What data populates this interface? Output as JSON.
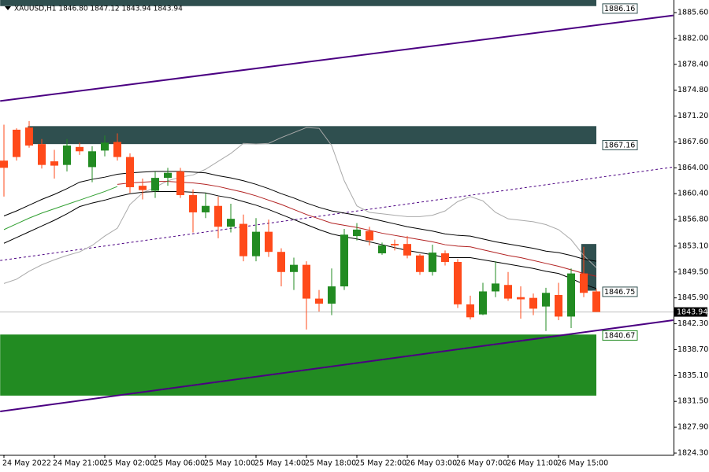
{
  "chart_data": {
    "type": "candlestick",
    "title": "XAUUSD,H1  1846.80 1847.12 1843.94 1843.94",
    "categories": [
      "24 May 2022",
      null,
      null,
      null,
      "24 May 21:00",
      null,
      null,
      null,
      "25 May 02:00",
      null,
      null,
      null,
      "25 May 06:00",
      null,
      null,
      null,
      "25 May 10:00",
      null,
      null,
      null,
      "25 May 14:00",
      null,
      null,
      null,
      "25 May 18:00",
      null,
      null,
      null,
      "25 May 22:00",
      null,
      null,
      null,
      "26 May 03:00",
      null,
      null,
      null,
      "26 May 07:00",
      null,
      null,
      null,
      "26 May 11:00",
      null,
      null,
      null,
      "26 May 15:00",
      null,
      null,
      null
    ],
    "open": [
      1865.0,
      1869.3,
      1869.6,
      1867.3,
      1864.9,
      1864.4,
      1866.9,
      1864.1,
      1866.4,
      1867.6,
      1865.5,
      1861.5,
      1860.8,
      1862.6,
      1863.5,
      1860.2,
      1857.8,
      1858.7,
      1855.8,
      1856.2,
      1851.7,
      1855.1,
      1852.3,
      1849.5,
      1850.5,
      1845.8,
      1845.1,
      1847.5,
      1854.5,
      1855.2,
      1852.1,
      1853.4,
      1853.4,
      1851.8,
      1849.5,
      1852.1,
      1850.9,
      1845.0,
      1843.6,
      1846.8,
      1847.7,
      1846.0,
      1845.9,
      1844.7,
      1846.3,
      1843.3,
      1849.3,
      1846.8
    ],
    "high": [
      1870.0,
      1869.5,
      1870.5,
      1868.0,
      1866.5,
      1868.0,
      1867.5,
      1867.0,
      1868.5,
      1868.8,
      1866.0,
      1862.5,
      1863.5,
      1864.0,
      1864.0,
      1861.0,
      1860.5,
      1860.0,
      1859.0,
      1857.5,
      1857.0,
      1856.8,
      1852.8,
      1851.5,
      1851.0,
      1847.0,
      1850.0,
      1855.5,
      1856.3,
      1855.8,
      1853.6,
      1854.0,
      1854.5,
      1852.0,
      1853.3,
      1852.5,
      1851.3,
      1846.2,
      1848.0,
      1851.0,
      1849.5,
      1847.5,
      1846.5,
      1847.3,
      1848.0,
      1850.0,
      1853.0,
      1847.12
    ],
    "low": [
      1860.0,
      1865.0,
      1866.8,
      1863.9,
      1862.5,
      1863.5,
      1865.8,
      1862.0,
      1865.6,
      1865.0,
      1860.5,
      1859.6,
      1859.8,
      1861.5,
      1859.8,
      1855.0,
      1857.0,
      1854.2,
      1855.0,
      1851.0,
      1851.0,
      1851.6,
      1847.5,
      1847.0,
      1841.5,
      1844.0,
      1843.5,
      1847.0,
      1853.9,
      1853.2,
      1851.9,
      1852.5,
      1851.4,
      1849.1,
      1849.0,
      1850.4,
      1844.5,
      1842.9,
      1843.5,
      1846.0,
      1845.5,
      1843.0,
      1843.5,
      1841.3,
      1842.8,
      1841.7,
      1846.0,
      1843.94
    ],
    "close": [
      1864.0,
      1865.5,
      1867.1,
      1864.4,
      1864.3,
      1867.1,
      1866.3,
      1866.3,
      1867.5,
      1865.5,
      1861.3,
      1860.9,
      1862.6,
      1863.3,
      1860.2,
      1857.8,
      1858.7,
      1855.8,
      1856.9,
      1851.7,
      1855.1,
      1852.3,
      1849.5,
      1850.5,
      1845.8,
      1845.1,
      1847.5,
      1854.7,
      1855.4,
      1853.9,
      1853.2,
      1853.2,
      1851.8,
      1849.5,
      1852.2,
      1850.9,
      1845.0,
      1843.2,
      1846.8,
      1847.9,
      1845.8,
      1845.7,
      1844.4,
      1846.6,
      1843.3,
      1849.3,
      1846.6,
      1843.94
    ],
    "up_color": "#228b22",
    "down_color": "#ff4a1a",
    "ylim": [
      1824.08,
      1887.35
    ],
    "yticks": [
      {
        "value": 1885.6,
        "label": "1885.60"
      },
      {
        "value": 1882,
        "label": "1882.00"
      },
      {
        "value": 1878.4,
        "label": "1878.40"
      },
      {
        "value": 1874.8,
        "label": "1874.80"
      },
      {
        "value": 1871.2,
        "label": "1871.20"
      },
      {
        "value": 1867.6,
        "label": "1867.60"
      },
      {
        "value": 1864,
        "label": "1864.00"
      },
      {
        "value": 1860.4,
        "label": "1860.40"
      },
      {
        "value": 1856.8,
        "label": "1856.80"
      },
      {
        "value": 1853.1,
        "label": "1853.10"
      },
      {
        "value": 1849.5,
        "label": "1849.50"
      },
      {
        "value": 1845.9,
        "label": "1845.90"
      },
      {
        "value": 1842.3,
        "label": "1842.30"
      },
      {
        "value": 1838.7,
        "label": "1838.70"
      },
      {
        "value": 1835.1,
        "label": "1835.10"
      },
      {
        "value": 1831.5,
        "label": "1831.50"
      },
      {
        "value": 1827.9,
        "label": "1827.90"
      },
      {
        "value": 1824.3,
        "label": "1824.30"
      }
    ],
    "zones": [
      {
        "from": -0.3,
        "to": 47,
        "low": 1886.5,
        "high": 1887.35,
        "color": "#2f4f4f"
      },
      {
        "from": 1.9,
        "to": 47,
        "low": 1867.3,
        "high": 1869.8,
        "color": "#2f4f4f"
      },
      {
        "from": -0.3,
        "to": 47,
        "low": 1832.3,
        "high": 1840.8,
        "color": "#228b22"
      },
      {
        "from": 45.8,
        "to": 47,
        "low": 1846.9,
        "high": 1853.4,
        "color": "#2f4f4f"
      }
    ],
    "lines": [
      {
        "color": "#a9a9a9",
        "values": [
          1847.9,
          1848.5,
          1849.6,
          1850.5,
          1851.2,
          1851.8,
          1852.3,
          1853.2,
          1854.5,
          1855.6,
          1858.9,
          1860.5,
          1861.3,
          1862.2,
          1862.7,
          1863.0,
          1863.8,
          1864.9,
          1866.0,
          1867.4,
          1867.3,
          1867.4,
          1868.2,
          1868.9,
          1869.6,
          1869.5,
          1867.1,
          1862.2,
          1858.7,
          1857.8,
          1857.6,
          1857.4,
          1857.2,
          1857.2,
          1857.4,
          1858.0,
          1859.3,
          1860.0,
          1859.4,
          1857.8,
          1856.9,
          1856.7,
          1856.5,
          1856.1,
          1855.4,
          1854.0,
          1851.8,
          1850.1
        ]
      },
      {
        "color": "#000000",
        "values": [
          1857.3,
          1858.0,
          1858.8,
          1859.6,
          1860.3,
          1861.1,
          1862.0,
          1862.4,
          1862.7,
          1863.1,
          1863.3,
          1863.4,
          1863.5,
          1863.5,
          1863.5,
          1863.4,
          1863.3,
          1862.9,
          1862.6,
          1862.2,
          1861.7,
          1861.1,
          1860.4,
          1859.8,
          1859.1,
          1858.5,
          1858.0,
          1857.7,
          1857.4,
          1857.0,
          1856.6,
          1856.2,
          1855.8,
          1855.5,
          1855.2,
          1854.8,
          1854.6,
          1854.5,
          1854.1,
          1853.7,
          1853.4,
          1853.1,
          1852.8,
          1852.4,
          1852.2,
          1851.8,
          1851.3,
          1851.0
        ]
      },
      {
        "color": "#000000",
        "values": [
          1853.5,
          1854.3,
          1855.1,
          1855.9,
          1856.7,
          1857.6,
          1858.6,
          1859.1,
          1859.5,
          1860.0,
          1860.4,
          1860.6,
          1860.7,
          1860.7,
          1860.7,
          1860.6,
          1860.5,
          1860.1,
          1859.8,
          1859.3,
          1858.8,
          1858.2,
          1857.5,
          1856.8,
          1856.1,
          1855.4,
          1854.8,
          1854.4,
          1854.1,
          1853.7,
          1853.3,
          1852.9,
          1852.5,
          1852.2,
          1851.9,
          1851.5,
          1851.5,
          1851.5,
          1851.2,
          1850.9,
          1850.6,
          1850.3,
          1850.0,
          1849.6,
          1849.3,
          1848.6,
          1847.8,
          1847.2
        ]
      },
      {
        "color": "#b22222",
        "values": [
          null,
          null,
          null,
          null,
          null,
          null,
          null,
          null,
          null,
          1861.7,
          1861.9,
          1862.0,
          1862.1,
          1862.1,
          1862.0,
          1861.9,
          1861.7,
          1861.4,
          1861.0,
          1860.6,
          1860.1,
          1859.5,
          1858.9,
          1858.2,
          1857.5,
          1856.9,
          1856.3,
          1856.0,
          1855.7,
          1855.3,
          1854.9,
          1854.6,
          1854.3,
          1854.0,
          1853.7,
          1853.3,
          1853.1,
          1853.0,
          1852.6,
          1852.2,
          1851.8,
          1851.5,
          1851.1,
          1850.7,
          1850.3,
          1849.8,
          1849.3,
          1848.9
        ]
      },
      {
        "color": "#32a032",
        "values": [
          1855.4,
          1856.2,
          1857.0,
          1857.7,
          1858.3,
          1858.9,
          1859.5,
          1860.1,
          1860.7,
          1861.4,
          null,
          null,
          null,
          null,
          null,
          null,
          null,
          null,
          null,
          null,
          null,
          null,
          null,
          null,
          null,
          null,
          null,
          null,
          null,
          null,
          null,
          null,
          null,
          null,
          null,
          null,
          null,
          null,
          null,
          null,
          null,
          null,
          null,
          null,
          null,
          null,
          null,
          null
        ]
      }
    ],
    "trendlines": [
      {
        "color": "#4b0082",
        "dashed": false,
        "x": [
          -0.3,
          53.1
        ],
        "y": [
          1873.3,
          1885.2
        ]
      },
      {
        "color": "#4b0082",
        "dashed": true,
        "x": [
          -0.3,
          53.1
        ],
        "y": [
          1851.1,
          1864.1
        ]
      },
      {
        "color": "#4b0082",
        "dashed": false,
        "x": [
          -0.3,
          53.1
        ],
        "y": [
          1830.1,
          1842.8
        ]
      }
    ],
    "price_labels": [
      {
        "value": 1886.16,
        "label": "1886.16",
        "color": "#2f4f4f"
      },
      {
        "value": 1867.16,
        "label": "1867.16",
        "color": "#2f4f4f"
      },
      {
        "value": 1846.75,
        "label": "1846.75",
        "color": "#2f4f4f"
      },
      {
        "value": 1840.67,
        "label": "1840.67",
        "color": "#228b22"
      }
    ],
    "current_price": {
      "value": 1843.94,
      "label": "1843.94"
    }
  }
}
